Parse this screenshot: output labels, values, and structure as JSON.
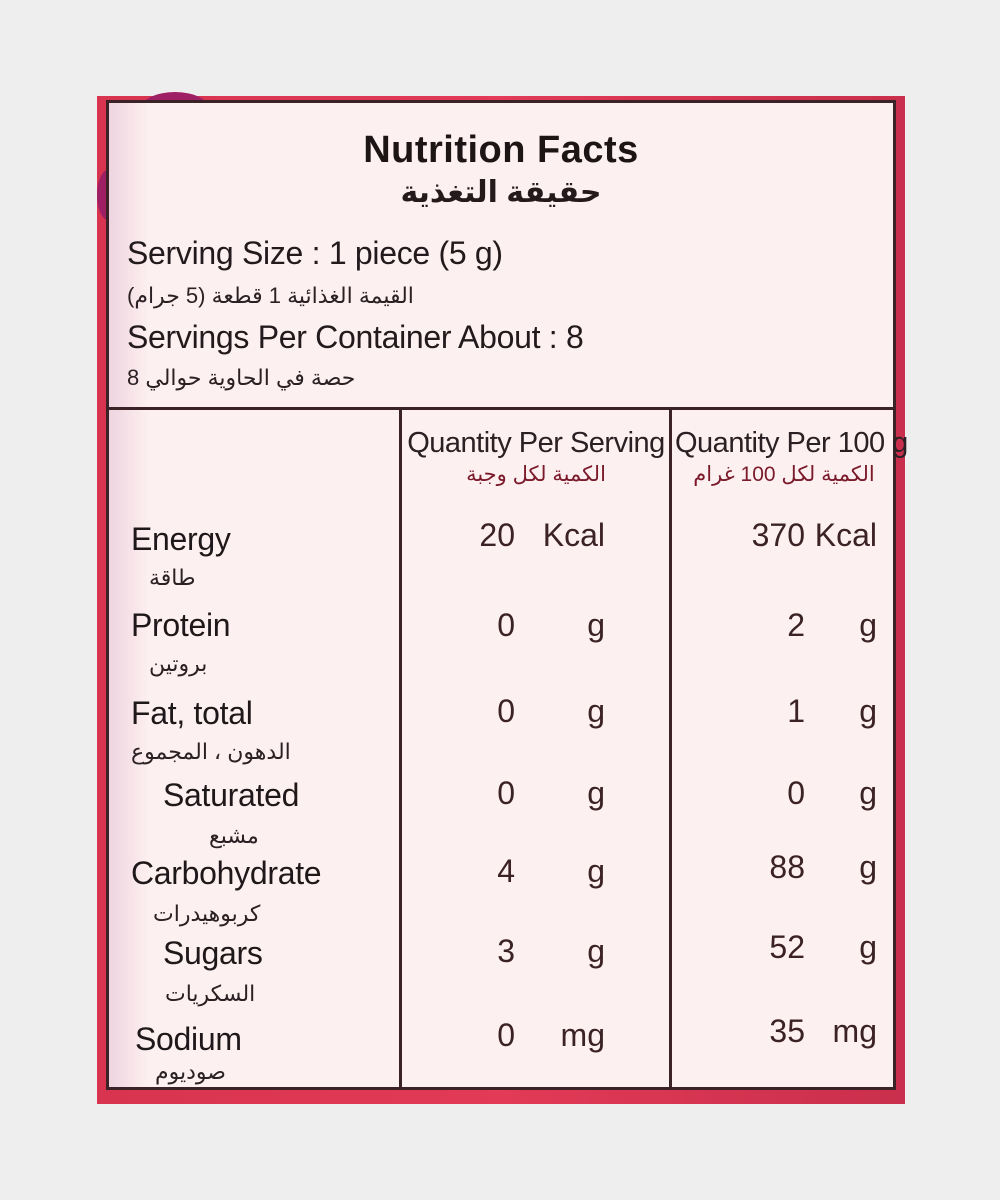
{
  "title": "Nutrition Facts",
  "title_ar": "حقيقة التغذية",
  "serving_size": "Serving Size : 1 piece (5 g)",
  "serving_size_ar": "القيمة الغذائية 1 قطعة (5 جرام)",
  "servings_per_container": "Servings Per Container About : 8",
  "servings_per_container_ar": "حصة في الحاوية حوالي 8",
  "columns": [
    {
      "label": "Quantity Per Serving",
      "label_ar": "الكمية لكل وجبة"
    },
    {
      "label": "Quantity Per 100 g",
      "label_ar": "الكمية لكل 100 غرام"
    }
  ],
  "nutrients": [
    {
      "name": "Energy",
      "name_ar": "طاقة",
      "per_serving": "20",
      "per_serving_unit": "Kcal",
      "per_100g": "370",
      "per_100g_unit": "Kcal"
    },
    {
      "name": "Protein",
      "name_ar": "بروتين",
      "per_serving": "0",
      "per_serving_unit": "g",
      "per_100g": "2",
      "per_100g_unit": "g"
    },
    {
      "name": "Fat, total",
      "name_ar": "الدهون ، المجموع",
      "per_serving": "0",
      "per_serving_unit": "g",
      "per_100g": "1",
      "per_100g_unit": "g"
    },
    {
      "name": "Saturated",
      "name_ar": "مشبع",
      "per_serving": "0",
      "per_serving_unit": "g",
      "per_100g": "0",
      "per_100g_unit": "g"
    },
    {
      "name": "Carbohydrate",
      "name_ar": "كربوهيدرات",
      "per_serving": "4",
      "per_serving_unit": "g",
      "per_100g": "88",
      "per_100g_unit": "g"
    },
    {
      "name": "Sugars",
      "name_ar": "السكريات",
      "per_serving": "3",
      "per_serving_unit": "g",
      "per_100g": "52",
      "per_100g_unit": "g"
    },
    {
      "name": "Sodium",
      "name_ar": "صوديوم",
      "per_serving": "0",
      "per_serving_unit": "mg",
      "per_100g": "35",
      "per_100g_unit": "mg"
    }
  ],
  "colors": {
    "background": "#eeeeee",
    "packaging": "#e23a57",
    "label": "#fdf0f0",
    "border": "#3a2226"
  }
}
